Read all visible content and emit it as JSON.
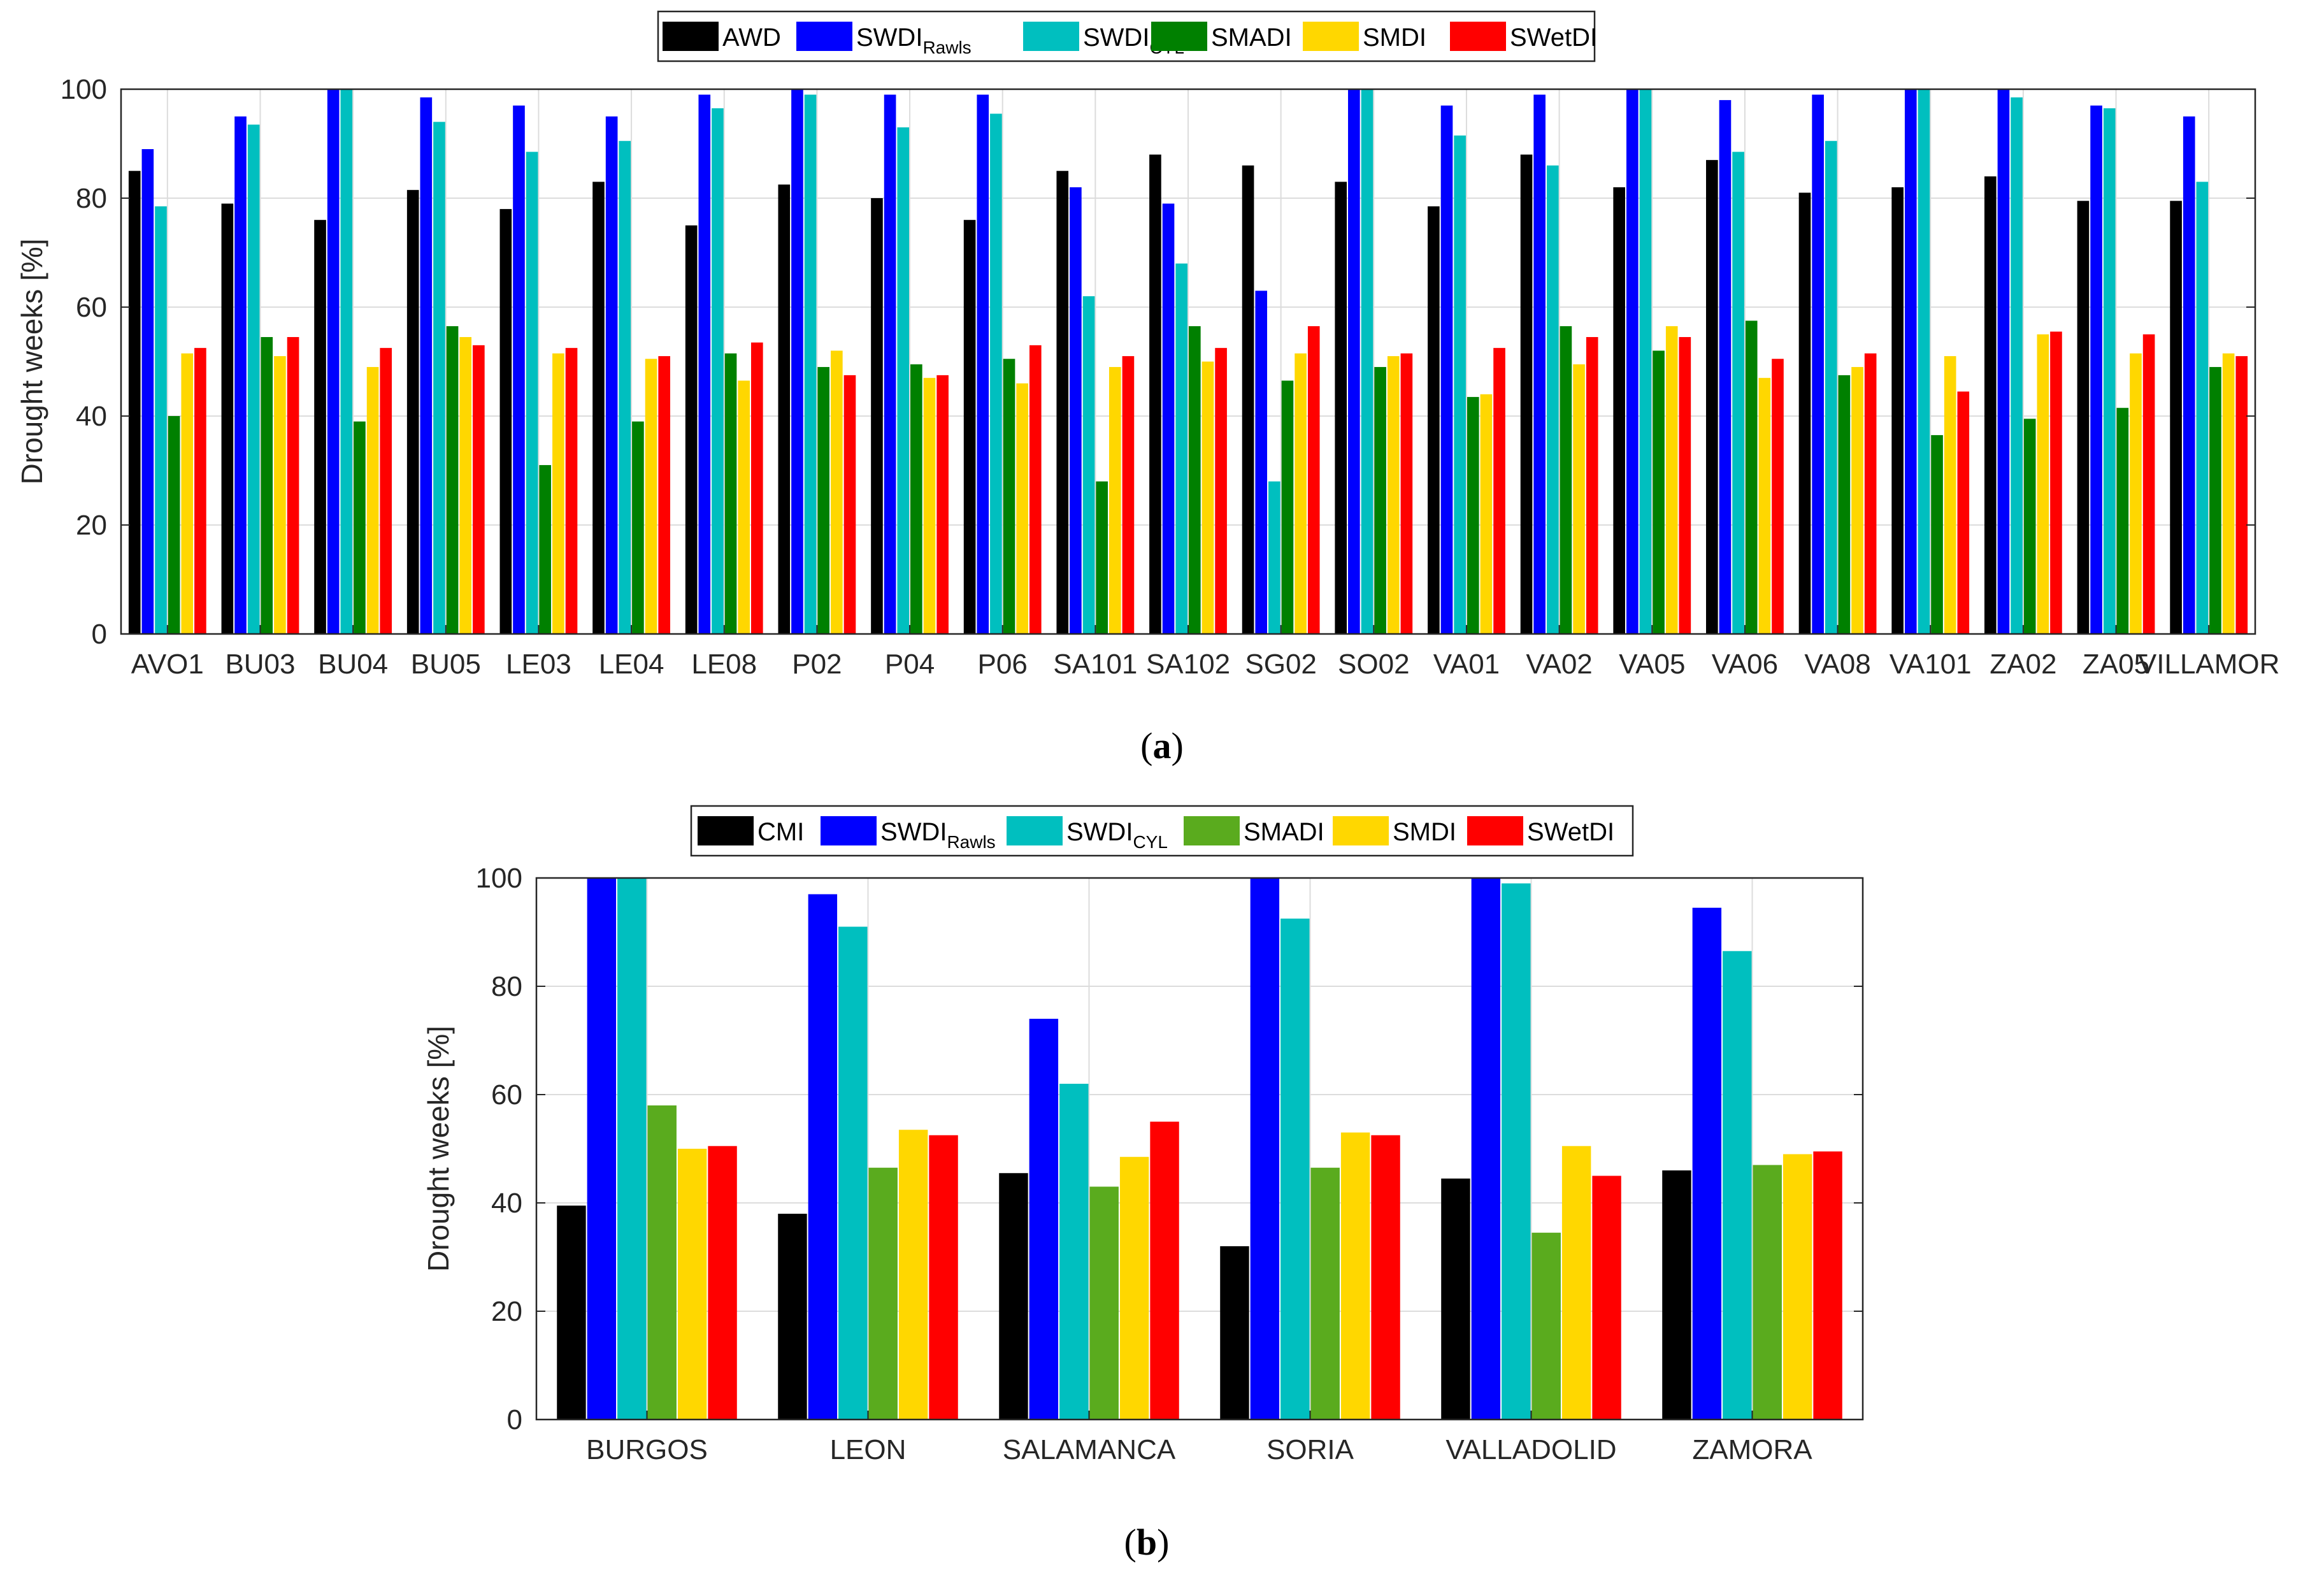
{
  "figure": {
    "panel_a_label_open": "(",
    "panel_a_label_letter": "a",
    "panel_a_label_close": ")",
    "panel_b_label_open": "(",
    "panel_b_label_letter": "b",
    "panel_b_label_close": ")"
  },
  "chart_data": [
    {
      "type": "bar",
      "panel": "a",
      "title": "",
      "xlabel": "",
      "ylabel": "Drought weeks [%]",
      "ylim": [
        0,
        100
      ],
      "yticks": [
        0,
        20,
        40,
        60,
        80,
        100
      ],
      "grid": true,
      "legend_position": "top-center",
      "categories": [
        "AVO1",
        "BU03",
        "BU04",
        "BU05",
        "LE03",
        "LE04",
        "LE08",
        "P02",
        "P04",
        "P06",
        "SA101",
        "SA102",
        "SG02",
        "SO02",
        "VA01",
        "VA02",
        "VA05",
        "VA06",
        "VA08",
        "VA101",
        "ZA02",
        "ZA05",
        "VILLAMOR"
      ],
      "series": [
        {
          "name": "AWD",
          "sub": "",
          "color": "#000000",
          "values": [
            85,
            79,
            76,
            81.5,
            78,
            83,
            75,
            82.5,
            80,
            76,
            85,
            88,
            86,
            83,
            78.5,
            88,
            82,
            87,
            81,
            82,
            84,
            79.5,
            79.5
          ]
        },
        {
          "name": "SWDI",
          "sub": "Rawls",
          "color": "#0000ff",
          "values": [
            89,
            95,
            100,
            98.5,
            97,
            95,
            99,
            100,
            99,
            99,
            82,
            79,
            63,
            100,
            97,
            99,
            100,
            98,
            99,
            100,
            100,
            97,
            95
          ]
        },
        {
          "name": "SWDI",
          "sub": "CYL",
          "color": "#00bfbf",
          "values": [
            78.5,
            93.5,
            100,
            94,
            88.5,
            90.5,
            96.5,
            99,
            93,
            95.5,
            62,
            68,
            28,
            100,
            91.5,
            86,
            100,
            88.5,
            90.5,
            100,
            98.5,
            96.5,
            83
          ]
        },
        {
          "name": "SMADI",
          "sub": "",
          "color": "#008000",
          "values": [
            40,
            54.5,
            39,
            56.5,
            31,
            39,
            51.5,
            49,
            49.5,
            50.5,
            28,
            56.5,
            46.5,
            49,
            43.5,
            56.5,
            52,
            57.5,
            47.5,
            36.5,
            39.5,
            41.5,
            49
          ]
        },
        {
          "name": "SMDI",
          "sub": "",
          "color": "#ffd700",
          "values": [
            51.5,
            51,
            49,
            54.5,
            51.5,
            50.5,
            46.5,
            52,
            47,
            46,
            49,
            50,
            51.5,
            51,
            44,
            49.5,
            56.5,
            47,
            49,
            51,
            55,
            51.5,
            51.5
          ]
        },
        {
          "name": "SWetDI",
          "sub": "",
          "color": "#ff0000",
          "values": [
            52.5,
            54.5,
            52.5,
            53,
            52.5,
            51,
            53.5,
            47.5,
            47.5,
            53,
            51,
            52.5,
            56.5,
            51.5,
            52.5,
            54.5,
            54.5,
            50.5,
            51.5,
            44.5,
            55.5,
            55,
            51
          ]
        }
      ]
    },
    {
      "type": "bar",
      "panel": "b",
      "title": "",
      "xlabel": "",
      "ylabel": "Drought weeks [%]",
      "ylim": [
        0,
        100
      ],
      "yticks": [
        0,
        20,
        40,
        60,
        80,
        100
      ],
      "grid": true,
      "legend_position": "top-center",
      "categories": [
        "BURGOS",
        "LEON",
        "SALAMANCA",
        "SORIA",
        "VALLADOLID",
        "ZAMORA"
      ],
      "series": [
        {
          "name": "CMI",
          "sub": "",
          "color": "#000000",
          "values": [
            39.5,
            38,
            45.5,
            32,
            44.5,
            46
          ]
        },
        {
          "name": "SWDI",
          "sub": "Rawls",
          "color": "#0000ff",
          "values": [
            100,
            97,
            74,
            100,
            100,
            94.5
          ]
        },
        {
          "name": "SWDI",
          "sub": "CYL",
          "color": "#00bfbf",
          "values": [
            100,
            91,
            62,
            92.5,
            99,
            86.5
          ]
        },
        {
          "name": "SMADI",
          "sub": "",
          "color": "#5aab1e",
          "values": [
            58,
            46.5,
            43,
            46.5,
            34.5,
            47
          ]
        },
        {
          "name": "SMDI",
          "sub": "",
          "color": "#ffd700",
          "values": [
            50,
            53.5,
            48.5,
            53,
            50.5,
            49
          ]
        },
        {
          "name": "SWetDI",
          "sub": "",
          "color": "#ff0000",
          "values": [
            50.5,
            52.5,
            55,
            52.5,
            45,
            49.5
          ]
        }
      ]
    }
  ]
}
